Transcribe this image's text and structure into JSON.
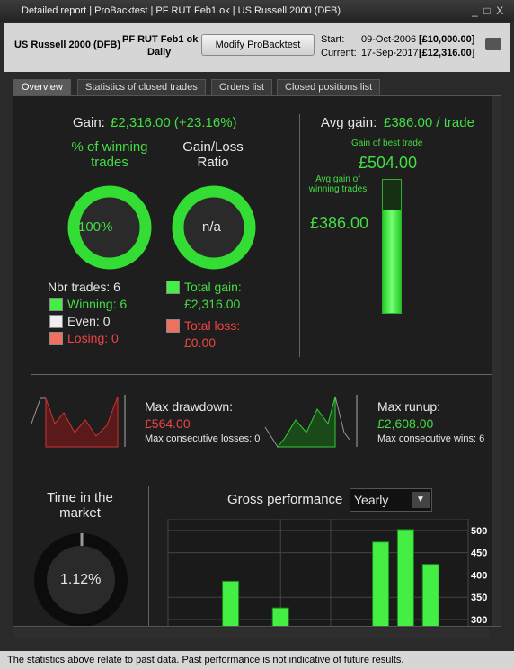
{
  "window_title": "Detailed report | ProBacktest | PF RUT Feb1 ok | US Russell 2000 (DFB)",
  "header": {
    "instrument": "US Russell 2000 (DFB)",
    "strategy": "PF RUT Feb1 ok",
    "period": "Daily",
    "button": "Modify ProBacktest",
    "start_label": "Start:",
    "start_date": "09-Oct-2006",
    "start_value": "[£10,000.00]",
    "current_label": "Current:",
    "current_date": "17-Sep-2017",
    "current_value": "[£12,316.00]"
  },
  "tabs": [
    "Overview",
    "Statistics of closed trades",
    "Orders list",
    "Closed positions list"
  ],
  "overview": {
    "gain_label": "Gain:",
    "gain_value": "£2,316.00 (+23.16%)",
    "winning_title": "% of winning trades",
    "winning_pct": "100%",
    "ratio_title": "Gain/Loss Ratio",
    "ratio_value": "n/a",
    "nbr_trades": "Nbr trades: 6",
    "winning": "Winning: 6",
    "even": "Even: 0",
    "losing": "Losing: 0",
    "total_gain_label": "Total gain:",
    "total_gain": "£2,316.00",
    "total_loss_label": "Total loss:",
    "total_loss": "£0.00",
    "avg_gain_label": "Avg gain:",
    "avg_gain_value": "£386.00 / trade",
    "best_trade_label": "Gain of best trade",
    "best_trade": "£504.00",
    "avg_winning_label": "Avg gain of winning trades",
    "avg_winning": "£386.00",
    "drawdown_label": "Max drawdown:",
    "drawdown": "£564.00",
    "consec_losses": "Max consecutive losses: 0",
    "runup_label": "Max runup:",
    "runup": "£2,608.00",
    "consec_wins": "Max consecutive wins: 6",
    "time_label": "Time in the market",
    "time_value": "1.12%",
    "gross_label": "Gross performance",
    "gross_period": "Yearly"
  },
  "chart_data": {
    "type": "bar",
    "categories": [
      null,
      null,
      null,
      null,
      null,
      null,
      null,
      null,
      null,
      null,
      null,
      null
    ],
    "values": [
      null,
      null,
      386,
      null,
      326,
      null,
      null,
      null,
      474,
      502,
      424,
      null
    ],
    "color": "#44ee44",
    "ylim": [
      300,
      526
    ],
    "yticks": [
      300,
      350,
      400,
      450,
      500
    ],
    "grid": true
  },
  "footer": "The statistics above relate to past data. Past performance is not indicative of future results."
}
